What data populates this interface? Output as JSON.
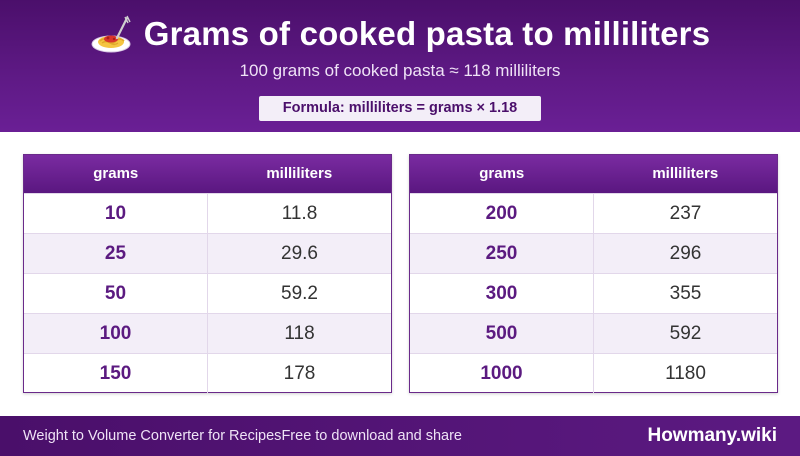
{
  "header": {
    "icon": "spaghetti-plate-icon",
    "title": "Grams of cooked pasta to milliliters",
    "subtitle": "100 grams of cooked pasta ≈ 118 milliliters",
    "formula": "Formula: milliliters = grams × 1.18"
  },
  "tables": [
    {
      "columns": [
        "grams",
        "milliliters"
      ],
      "rows": [
        [
          "10",
          "11.8"
        ],
        [
          "25",
          "29.6"
        ],
        [
          "50",
          "59.2"
        ],
        [
          "100",
          "118"
        ],
        [
          "150",
          "178"
        ]
      ]
    },
    {
      "columns": [
        "grams",
        "milliliters"
      ],
      "rows": [
        [
          "200",
          "237"
        ],
        [
          "250",
          "296"
        ],
        [
          "300",
          "355"
        ],
        [
          "500",
          "592"
        ],
        [
          "1000",
          "1180"
        ]
      ]
    }
  ],
  "footer": {
    "left_text": "Weight to Volume Converter for Recipes",
    "middle_text": "Free to download and share",
    "brand": "Howmany.wiki"
  },
  "colors": {
    "header_purple": "#5f1a86",
    "accent_purple": "#5b1a80",
    "row_alt": "#f3eef8"
  }
}
